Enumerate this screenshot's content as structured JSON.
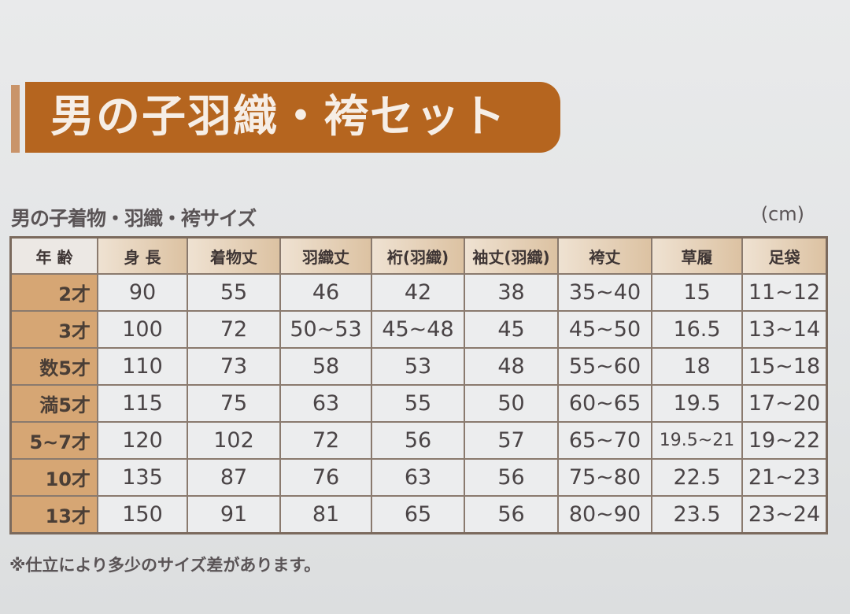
{
  "title": "男の子羽織・袴セット",
  "subtitle": "男の子着物・羽織・袴サイズ",
  "unit": "(cm)",
  "colors": {
    "banner": "#b5651f",
    "age_column": "#d6a674",
    "header": "#dcc2a2"
  },
  "table": {
    "headers": [
      "年 齢",
      "身 長",
      "着物丈",
      "羽織丈",
      "裄(羽織)",
      "袖丈(羽織)",
      "袴丈",
      "草履",
      "足袋"
    ],
    "rows": [
      [
        "2才",
        "90",
        "55",
        "46",
        "42",
        "38",
        "35~40",
        "15",
        "11~12"
      ],
      [
        "3才",
        "100",
        "72",
        "50~53",
        "45~48",
        "45",
        "45~50",
        "16.5",
        "13~14"
      ],
      [
        "数5才",
        "110",
        "73",
        "58",
        "53",
        "48",
        "55~60",
        "18",
        "15~18"
      ],
      [
        "満5才",
        "115",
        "75",
        "63",
        "55",
        "50",
        "60~65",
        "19.5",
        "17~20"
      ],
      [
        "5~7才",
        "120",
        "102",
        "72",
        "56",
        "57",
        "65~70",
        "19.5~21",
        "19~22"
      ],
      [
        "10才",
        "135",
        "87",
        "76",
        "63",
        "56",
        "75~80",
        "22.5",
        "21~23"
      ],
      [
        "13才",
        "150",
        "91",
        "81",
        "65",
        "56",
        "80~90",
        "23.5",
        "23~24"
      ]
    ]
  },
  "note": "※仕立により多少のサイズ差があります。"
}
